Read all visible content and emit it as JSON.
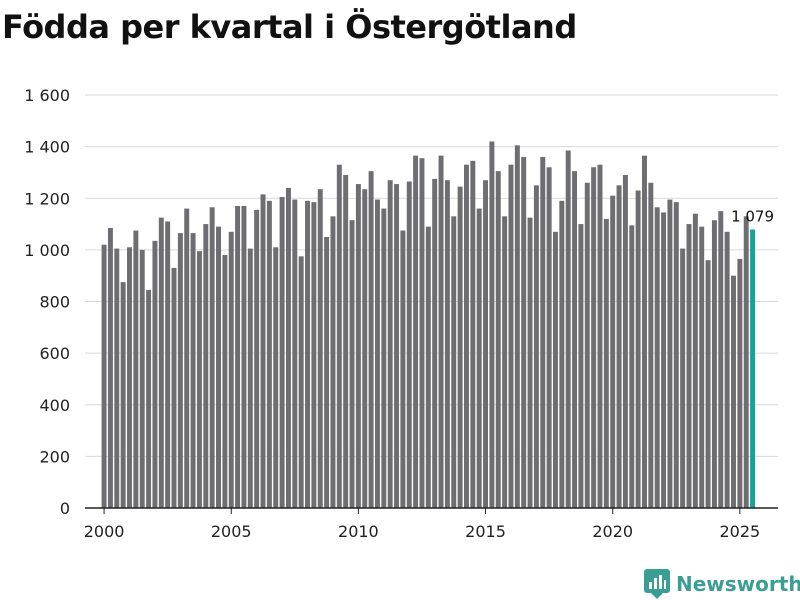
{
  "chart_data": {
    "type": "bar",
    "title": "Födda per kvartal i Östergötland",
    "xlabel": "",
    "ylabel": "",
    "ylim": [
      0,
      1600
    ],
    "yticks": [
      0,
      200,
      400,
      600,
      800,
      1000,
      1200,
      1400,
      1600
    ],
    "ytick_labels": [
      "0",
      "200",
      "400",
      "600",
      "800",
      "1 000",
      "1 200",
      "1 400",
      "1 600"
    ],
    "xticks": [
      2000,
      2005,
      2010,
      2015,
      2020,
      2025
    ],
    "xtick_labels": [
      "2000",
      "2005",
      "2010",
      "2015",
      "2020",
      "2025"
    ],
    "xlim": [
      1999.25,
      2026.5
    ],
    "grid": true,
    "start_year": 2000,
    "periods_per_year": 4,
    "highlight_color": "#16a39a",
    "bar_color": "#6d6d72",
    "highlight_label": "1 079",
    "values": [
      1020,
      1085,
      1005,
      875,
      1010,
      1075,
      1000,
      845,
      1035,
      1125,
      1110,
      930,
      1065,
      1160,
      1065,
      995,
      1100,
      1165,
      1090,
      980,
      1070,
      1170,
      1170,
      1005,
      1155,
      1215,
      1190,
      1010,
      1205,
      1240,
      1195,
      975,
      1190,
      1185,
      1235,
      1050,
      1130,
      1330,
      1290,
      1115,
      1255,
      1235,
      1305,
      1195,
      1160,
      1270,
      1255,
      1075,
      1265,
      1365,
      1355,
      1090,
      1275,
      1365,
      1270,
      1130,
      1245,
      1330,
      1345,
      1160,
      1270,
      1420,
      1305,
      1130,
      1330,
      1405,
      1360,
      1125,
      1250,
      1360,
      1320,
      1070,
      1190,
      1385,
      1305,
      1100,
      1260,
      1320,
      1330,
      1120,
      1210,
      1250,
      1290,
      1095,
      1230,
      1365,
      1260,
      1165,
      1145,
      1195,
      1185,
      1005,
      1100,
      1140,
      1090,
      960,
      1115,
      1150,
      1070,
      900,
      965,
      1130,
      1079
    ]
  },
  "brand": {
    "name": "Newsworthy",
    "color": "#3a9e94"
  }
}
